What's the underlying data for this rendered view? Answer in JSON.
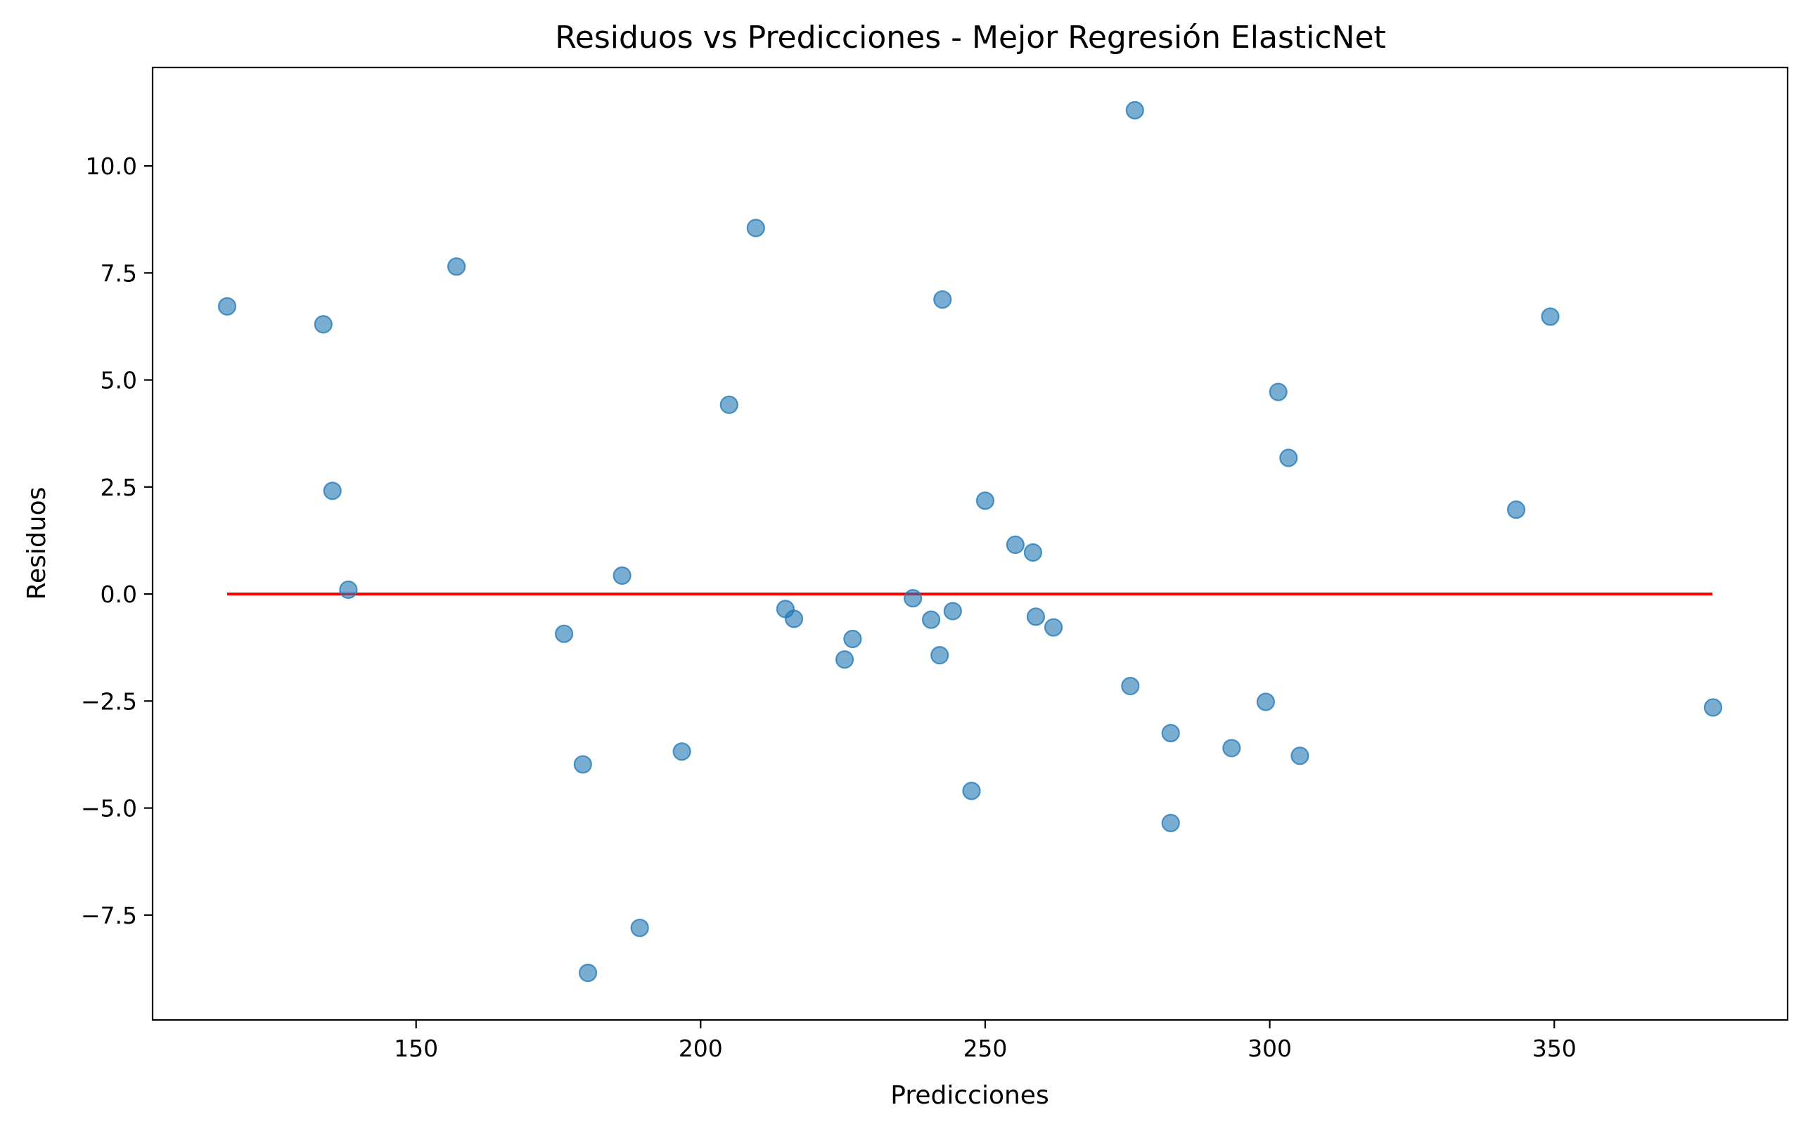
{
  "chart_data": {
    "type": "scatter",
    "title": "Residuos vs Predicciones - Mejor Regresión ElasticNet",
    "xlabel": "Predicciones",
    "ylabel": "Residuos",
    "xlim": [
      103.7,
      391.0
    ],
    "ylim": [
      -9.95,
      12.3
    ],
    "xticks": [
      150,
      200,
      250,
      300,
      350
    ],
    "xtick_labels": [
      "150",
      "200",
      "250",
      "300",
      "350"
    ],
    "yticks": [
      -7.5,
      -5.0,
      -2.5,
      0.0,
      2.5,
      5.0,
      7.5,
      10.0
    ],
    "ytick_labels": [
      "−7.5",
      "−5.0",
      "−2.5",
      "0.0",
      "2.5",
      "5.0",
      "7.5",
      "10.0"
    ],
    "grid": false,
    "reference_line": {
      "y": 0,
      "x_range": [
        116.8,
        377.8
      ],
      "color": "#ff0000"
    },
    "marker_color": "#1f77b4",
    "marker_alpha": 0.6,
    "points": [
      {
        "x": 116.8,
        "y": 6.72
      },
      {
        "x": 133.7,
        "y": 6.3
      },
      {
        "x": 135.3,
        "y": 2.41
      },
      {
        "x": 138.1,
        "y": 0.1
      },
      {
        "x": 157.1,
        "y": 7.65
      },
      {
        "x": 176.0,
        "y": -0.93
      },
      {
        "x": 179.3,
        "y": -3.98
      },
      {
        "x": 180.2,
        "y": -8.85
      },
      {
        "x": 186.2,
        "y": 0.43
      },
      {
        "x": 189.3,
        "y": -7.8
      },
      {
        "x": 196.7,
        "y": -3.68
      },
      {
        "x": 205.0,
        "y": 4.42
      },
      {
        "x": 209.7,
        "y": 8.55
      },
      {
        "x": 214.9,
        "y": -0.35
      },
      {
        "x": 216.4,
        "y": -0.58
      },
      {
        "x": 225.3,
        "y": -1.53
      },
      {
        "x": 226.7,
        "y": -1.05
      },
      {
        "x": 237.3,
        "y": -0.1
      },
      {
        "x": 240.5,
        "y": -0.6
      },
      {
        "x": 242.0,
        "y": -1.43
      },
      {
        "x": 242.5,
        "y": 6.88
      },
      {
        "x": 244.3,
        "y": -0.4
      },
      {
        "x": 247.6,
        "y": -4.6
      },
      {
        "x": 250.0,
        "y": 2.18
      },
      {
        "x": 255.3,
        "y": 1.15
      },
      {
        "x": 258.4,
        "y": 0.97
      },
      {
        "x": 258.9,
        "y": -0.53
      },
      {
        "x": 262.0,
        "y": -0.78
      },
      {
        "x": 275.5,
        "y": -2.15
      },
      {
        "x": 276.3,
        "y": 11.3
      },
      {
        "x": 282.6,
        "y": -3.25
      },
      {
        "x": 282.6,
        "y": -5.35
      },
      {
        "x": 293.3,
        "y": -3.6
      },
      {
        "x": 299.3,
        "y": -2.52
      },
      {
        "x": 301.5,
        "y": 4.72
      },
      {
        "x": 303.3,
        "y": 3.18
      },
      {
        "x": 305.3,
        "y": -3.78
      },
      {
        "x": 343.3,
        "y": 1.97
      },
      {
        "x": 349.3,
        "y": 6.48
      },
      {
        "x": 377.9,
        "y": -2.65
      }
    ]
  }
}
